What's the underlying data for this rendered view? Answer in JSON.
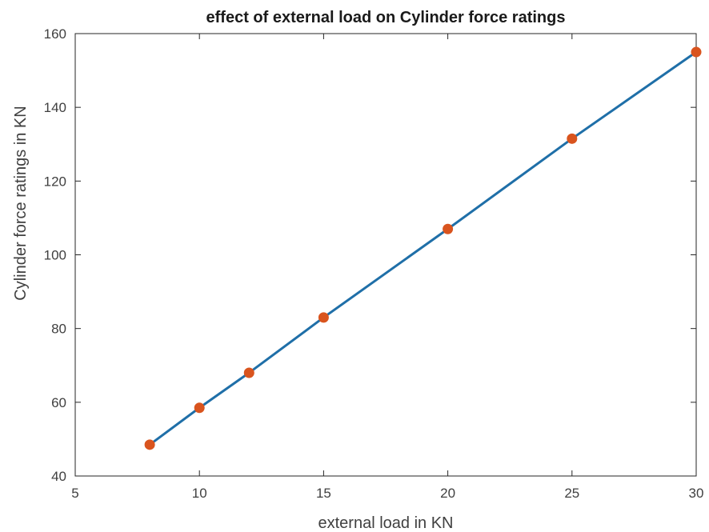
{
  "chart_data": {
    "type": "line",
    "title": "effect of external load on Cylinder force ratings",
    "xlabel": "external load in KN",
    "ylabel": "Cylinder force ratings in KN",
    "xlim": [
      5,
      30
    ],
    "ylim": [
      40,
      160
    ],
    "xticks": [
      5,
      10,
      15,
      20,
      25,
      30
    ],
    "yticks": [
      40,
      60,
      80,
      100,
      120,
      140,
      160
    ],
    "grid": false,
    "series": [
      {
        "x": [
          8,
          10,
          12,
          15,
          20,
          25,
          30
        ],
        "y": [
          48.5,
          58.5,
          68,
          83,
          107,
          131.5,
          155
        ],
        "line_color": "#1f6fa8",
        "marker_color": "#d9541e"
      }
    ]
  }
}
